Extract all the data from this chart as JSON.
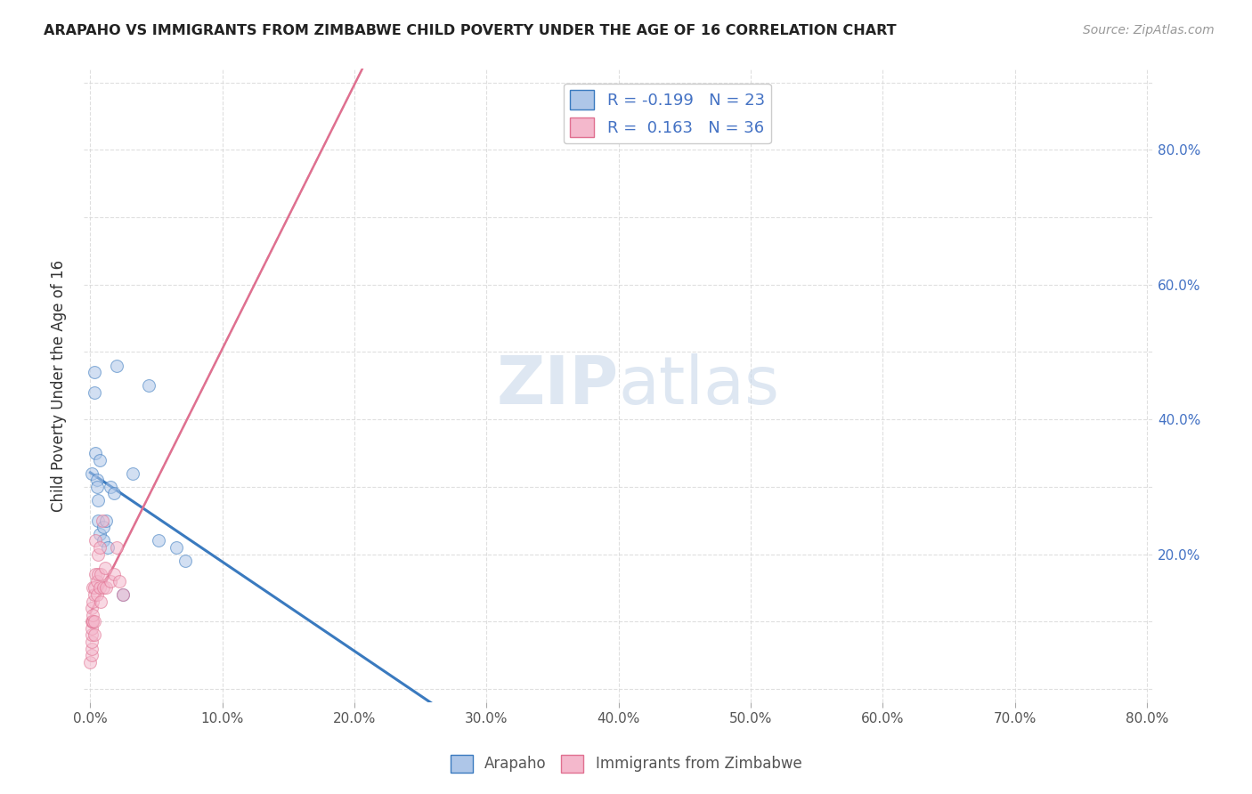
{
  "title": "ARAPAHO VS IMMIGRANTS FROM ZIMBABWE CHILD POVERTY UNDER THE AGE OF 16 CORRELATION CHART",
  "source": "Source: ZipAtlas.com",
  "ylabel": "Child Poverty Under the Age of 16",
  "arapaho_color": "#aec6e8",
  "zimbabwe_color": "#f4b8cc",
  "arapaho_line_color": "#3a7abf",
  "zimbabwe_line_color": "#e07090",
  "watermark_color": "#c8d8ea",
  "R_arapaho": -0.199,
  "N_arapaho": 23,
  "R_zimbabwe": 0.163,
  "N_zimbabwe": 36,
  "arapaho_x": [
    0.001,
    0.003,
    0.003,
    0.004,
    0.005,
    0.005,
    0.006,
    0.006,
    0.007,
    0.007,
    0.01,
    0.01,
    0.012,
    0.013,
    0.015,
    0.018,
    0.02,
    0.025,
    0.032,
    0.044,
    0.052,
    0.065,
    0.072
  ],
  "arapaho_y": [
    0.32,
    0.47,
    0.44,
    0.35,
    0.31,
    0.3,
    0.28,
    0.25,
    0.34,
    0.23,
    0.22,
    0.24,
    0.25,
    0.21,
    0.3,
    0.29,
    0.48,
    0.14,
    0.32,
    0.45,
    0.22,
    0.21,
    0.19
  ],
  "zimbabwe_x": [
    0.0,
    0.001,
    0.001,
    0.001,
    0.001,
    0.001,
    0.001,
    0.001,
    0.002,
    0.002,
    0.002,
    0.002,
    0.002,
    0.003,
    0.003,
    0.003,
    0.003,
    0.004,
    0.004,
    0.005,
    0.005,
    0.006,
    0.006,
    0.007,
    0.007,
    0.008,
    0.008,
    0.009,
    0.01,
    0.011,
    0.012,
    0.015,
    0.018,
    0.02,
    0.022,
    0.025
  ],
  "zimbabwe_y": [
    0.04,
    0.05,
    0.06,
    0.07,
    0.08,
    0.09,
    0.1,
    0.12,
    0.1,
    0.1,
    0.11,
    0.13,
    0.15,
    0.14,
    0.15,
    0.1,
    0.08,
    0.17,
    0.22,
    0.16,
    0.14,
    0.17,
    0.2,
    0.21,
    0.15,
    0.17,
    0.13,
    0.25,
    0.15,
    0.18,
    0.15,
    0.16,
    0.17,
    0.21,
    0.16,
    0.14
  ],
  "xlim_min": 0.0,
  "xlim_max": 0.8,
  "ylim_min": 0.0,
  "ylim_max": 0.9,
  "xtick_vals": [
    0.0,
    0.1,
    0.2,
    0.3,
    0.4,
    0.5,
    0.6,
    0.7,
    0.8
  ],
  "ytick_vals": [
    0.0,
    0.1,
    0.2,
    0.3,
    0.4,
    0.5,
    0.6,
    0.7,
    0.8,
    0.9
  ],
  "right_ytick_labels": [
    "80.0%",
    "60.0%",
    "40.0%",
    "20.0%"
  ],
  "right_ytick_positions": [
    0.8,
    0.6,
    0.4,
    0.2
  ],
  "marker_size": 100,
  "marker_alpha": 0.55,
  "dashed_line_color": "#cccccc",
  "grid_color": "#d8d8d8"
}
